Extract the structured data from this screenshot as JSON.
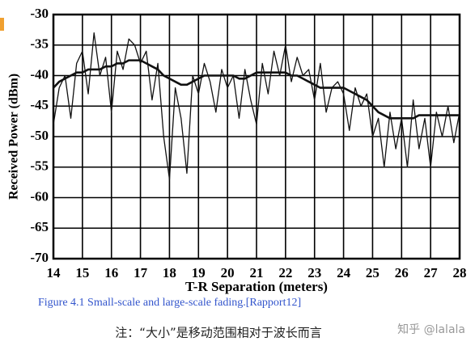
{
  "chart_data": {
    "type": "line",
    "xlabel": "T-R Separation (meters)",
    "ylabel": "Received Power (dBm)",
    "x": [
      14.0,
      14.2,
      14.4,
      14.6,
      14.8,
      15.0,
      15.2,
      15.4,
      15.6,
      15.8,
      16.0,
      16.2,
      16.4,
      16.6,
      16.8,
      17.0,
      17.2,
      17.4,
      17.6,
      17.8,
      18.0,
      18.2,
      18.4,
      18.6,
      18.8,
      19.0,
      19.2,
      19.4,
      19.6,
      19.8,
      20.0,
      20.2,
      20.4,
      20.6,
      20.8,
      21.0,
      21.2,
      21.4,
      21.6,
      21.8,
      22.0,
      22.2,
      22.4,
      22.6,
      22.8,
      23.0,
      23.2,
      23.4,
      23.6,
      23.8,
      24.0,
      24.2,
      24.4,
      24.6,
      24.8,
      25.0,
      25.2,
      25.4,
      25.6,
      25.8,
      26.0,
      26.2,
      26.4,
      26.6,
      26.8,
      27.0,
      27.2,
      27.4,
      27.6,
      27.8,
      28.0
    ],
    "series": [
      {
        "color": "#111111",
        "width": 1.3,
        "values": [
          -48,
          -42,
          -40,
          -47,
          -38,
          -36,
          -43,
          -33,
          -40,
          -37,
          -46,
          -36,
          -39,
          -34,
          -35,
          -38,
          -36,
          -44,
          -38,
          -50,
          -57,
          -42,
          -47,
          -56,
          -40,
          -43,
          -38,
          -41,
          -46,
          -39,
          -42,
          -40,
          -47,
          -39,
          -44,
          -48,
          -38,
          -43,
          -36,
          -40,
          -35,
          -41,
          -37,
          -40,
          -39,
          -44,
          -38,
          -46,
          -42,
          -41,
          -43,
          -49,
          -42,
          -45,
          -43,
          -50,
          -47,
          -55,
          -46,
          -52,
          -47,
          -55,
          -44,
          -52,
          -47,
          -55,
          -46,
          -50,
          -45,
          -51,
          -46
        ]
      },
      {
        "color": "#111111",
        "width": 2.6,
        "values": [
          -42,
          -41,
          -40.5,
          -40,
          -39.5,
          -39.5,
          -39,
          -39,
          -39,
          -38.5,
          -38.5,
          -38,
          -38,
          -37.5,
          -37.5,
          -37.5,
          -38,
          -38.5,
          -39,
          -40,
          -40.5,
          -41,
          -41.5,
          -41.5,
          -41,
          -40.5,
          -40,
          -40,
          -40,
          -40,
          -40,
          -40,
          -40.5,
          -40.5,
          -40,
          -39.5,
          -39.5,
          -39.5,
          -39.5,
          -39.5,
          -39.5,
          -40,
          -40,
          -40.5,
          -41,
          -41.5,
          -42,
          -42,
          -42,
          -42,
          -42,
          -42.5,
          -43,
          -43.5,
          -44,
          -45,
          -46,
          -46.5,
          -47,
          -47,
          -47,
          -47,
          -47,
          -46.5,
          -46.5,
          -46.5,
          -46.5,
          -46.5,
          -46.5,
          -46.5,
          -46.5
        ]
      }
    ],
    "xlim": [
      14,
      28
    ],
    "xticks": [
      14,
      15,
      16,
      17,
      18,
      19,
      20,
      21,
      22,
      23,
      24,
      25,
      26,
      27,
      28
    ],
    "ylim": [
      -70,
      -30
    ],
    "yticks": [
      -30,
      -35,
      -40,
      -45,
      -50,
      -55,
      -60,
      -65,
      -70
    ],
    "grid": true
  },
  "caption": "Figure 4.1  Small-scale and large-scale fading.[Rapport12]",
  "note": "注：“大小”是移动范围相对于波长而言",
  "watermark": "知乎 @lalala"
}
